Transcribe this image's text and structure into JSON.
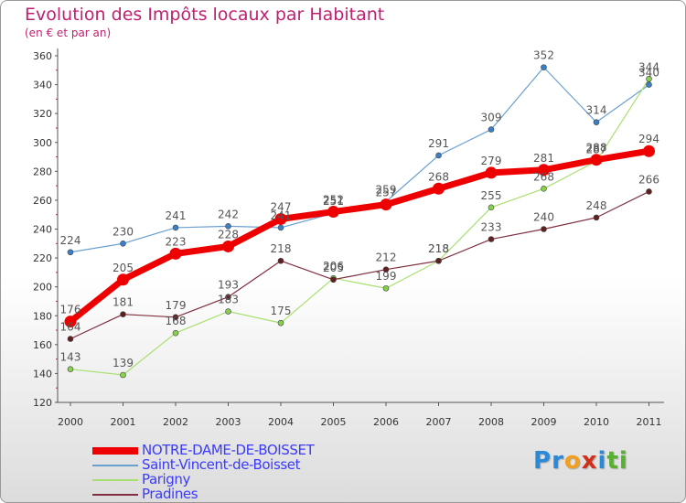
{
  "header": {
    "title": "Evolution des Impôts locaux par Habitant",
    "subtitle": "(en € et par an)"
  },
  "logo": {
    "letters": [
      "P",
      "r",
      "o",
      "x",
      "i",
      "t",
      "i"
    ],
    "colors": [
      "#2a8ad8",
      "#2a8ad8",
      "#f0a020",
      "#d0301a",
      "#2a8ad8",
      "#58b030",
      "#58b030"
    ]
  },
  "chart_data": {
    "type": "line",
    "title": "Evolution des Impôts locaux par Habitant",
    "subtitle": "(en € et par an)",
    "x": [
      "2000",
      "2001",
      "2002",
      "2003",
      "2004",
      "2005",
      "2006",
      "2007",
      "2008",
      "2009",
      "2010",
      "2011"
    ],
    "ylim": [
      120,
      360
    ],
    "yticks": [
      120,
      140,
      160,
      180,
      200,
      220,
      240,
      260,
      280,
      300,
      320,
      340,
      360
    ],
    "grid": false,
    "legend_position": "bottom-left",
    "series": [
      {
        "name": "Saint-Vincent-de-Boisset",
        "color": "#6a9fd0",
        "marker": "#3a7fc8",
        "width": 1.2,
        "values": [
          224,
          230,
          241,
          242,
          241,
          251,
          259,
          291,
          309,
          352,
          314,
          340
        ],
        "labels": [
          "224",
          "230",
          "241",
          "242",
          "241",
          "251",
          "259",
          "291",
          "309",
          "352",
          "314",
          "340"
        ]
      },
      {
        "name": "Parigny",
        "color": "#a8e070",
        "marker": "#88d050",
        "width": 1.2,
        "values": [
          143,
          139,
          168,
          183,
          175,
          206,
          199,
          218,
          255,
          268,
          287,
          344
        ],
        "labels": [
          "143",
          "139",
          "168",
          "183",
          "175",
          "206",
          "199",
          "218",
          "255",
          "268",
          "287",
          "344"
        ]
      },
      {
        "name": "Pradines",
        "color": "#803040",
        "marker": "#602020",
        "width": 1.2,
        "values": [
          164,
          181,
          179,
          193,
          218,
          205,
          212,
          218,
          233,
          240,
          248,
          266
        ],
        "labels": [
          "164",
          "181",
          "179",
          "193",
          "218",
          "205",
          "212",
          "218",
          "233",
          "240",
          "248",
          "266"
        ]
      },
      {
        "name": "NOTRE-DAME-DE-BOISSET",
        "color": "#ee0000",
        "marker": "#ee0000",
        "width": 7,
        "values": [
          176,
          205,
          223,
          228,
          247,
          252,
          257,
          268,
          279,
          281,
          288,
          294
        ],
        "labels": [
          "176",
          "205",
          "223",
          "228",
          "247",
          "252",
          "257",
          "268",
          "279",
          "281",
          "288",
          "294"
        ]
      }
    ],
    "legend_order": [
      "NOTRE-DAME-DE-BOISSET",
      "Saint-Vincent-de-Boisset",
      "Parigny",
      "Pradines"
    ]
  }
}
